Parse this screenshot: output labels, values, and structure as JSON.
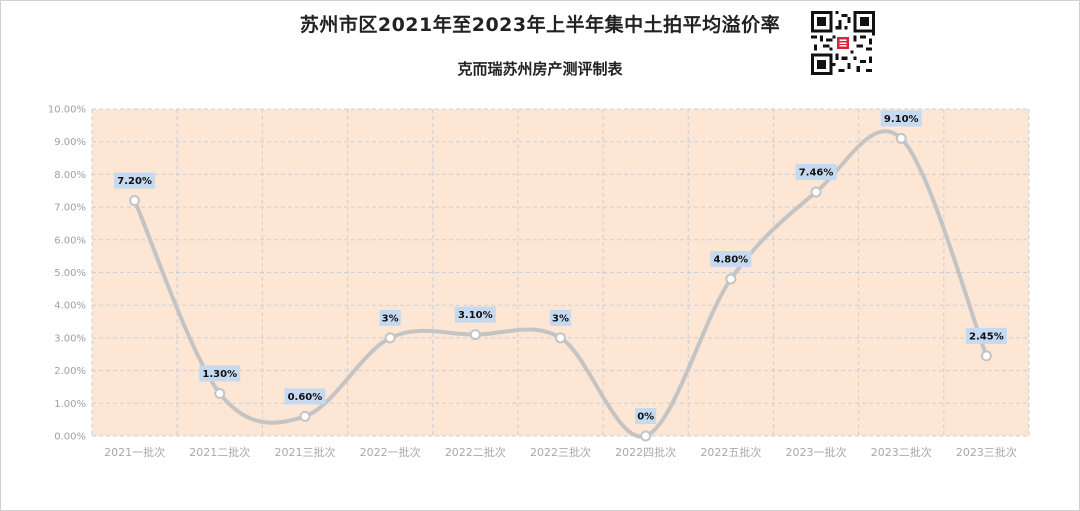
{
  "title": "苏州市区2021年至2023年上半年集中土拍平均溢价率",
  "subtitle": "克而瑞苏州房产测评制表",
  "qr_code": "qr-code-image",
  "colors": {
    "plot_background": "#fde6d4",
    "line": "#c4c4c4",
    "grid": "#c9cfd9",
    "label_box": "#c5d9f1"
  },
  "chart_data": {
    "type": "line",
    "smooth": true,
    "categories": [
      "2021一批次",
      "2021二批次",
      "2021三批次",
      "2022一批次",
      "2022二批次",
      "2022三批次",
      "2022四批次",
      "2022五批次",
      "2023一批次",
      "2023二批次",
      "2023三批次"
    ],
    "values": [
      7.2,
      1.3,
      0.6,
      3.0,
      3.1,
      3.0,
      0.0,
      4.8,
      7.46,
      9.1,
      2.45
    ],
    "data_labels": [
      "7.20%",
      "1.30%",
      "0.60%",
      "3%",
      "3.10%",
      "3%",
      "0%",
      "4.80%",
      "7.46%",
      "9.10%",
      "2.45%"
    ],
    "ylim": [
      0,
      10
    ],
    "yticks": [
      "0.00%",
      "1.00%",
      "2.00%",
      "3.00%",
      "4.00%",
      "5.00%",
      "6.00%",
      "7.00%",
      "8.00%",
      "9.00%",
      "10.00%"
    ],
    "grid": true,
    "legend": "none"
  }
}
